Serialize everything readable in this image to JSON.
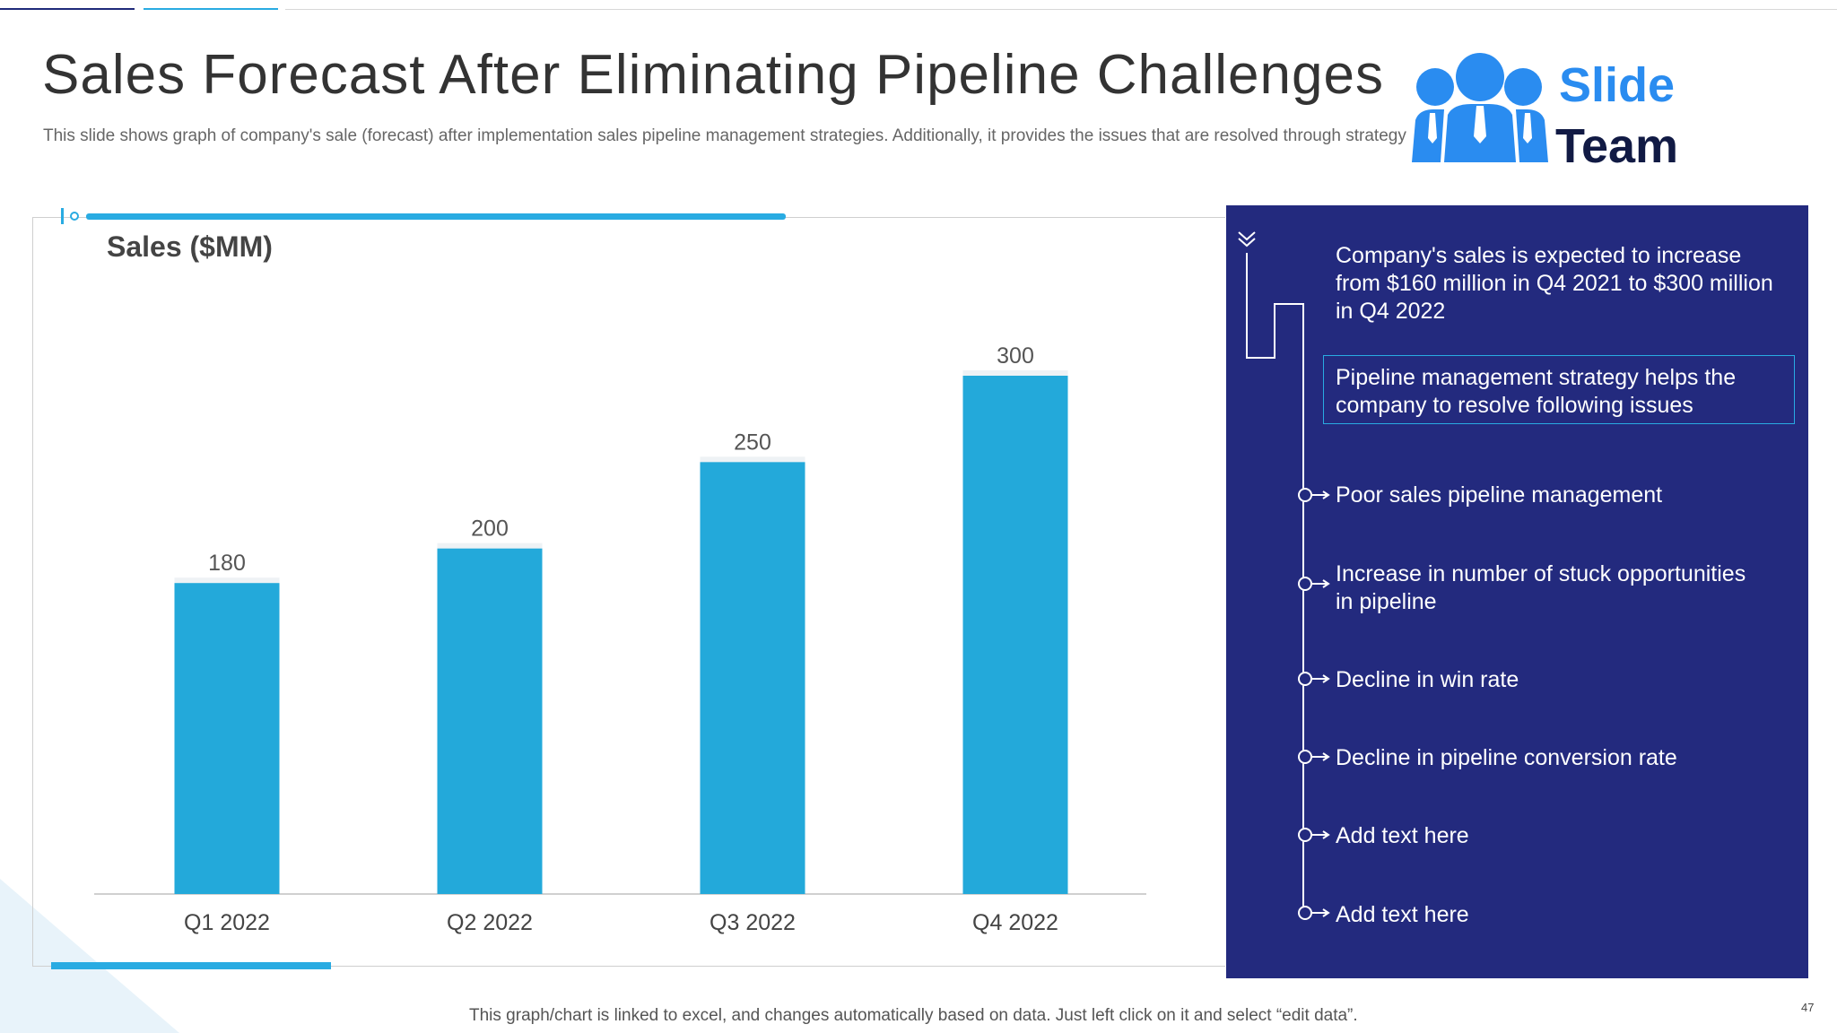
{
  "slide": {
    "title": "Sales Forecast After Eliminating Pipeline Challenges",
    "subtitle": "This slide shows graph of company's sale (forecast) after implementation sales pipeline management strategies. Additionally, it provides the issues that are resolved through strategy implementation.",
    "footnote": "This graph/chart is linked to excel, and changes automatically based on data. Just left click on it and select “edit data”.",
    "page_number": "47"
  },
  "logo": {
    "line1": "Slide",
    "line2": "Team"
  },
  "colors": {
    "bar": "#23a9da",
    "panel": "#232a7e",
    "accent": "#29abe2"
  },
  "chart_data": {
    "type": "bar",
    "title": "",
    "ylabel": "Sales ($MM)",
    "xlabel": "",
    "categories": [
      "Q1 2022",
      "Q2 2022",
      "Q3 2022",
      "Q4 2022"
    ],
    "values": [
      180,
      200,
      250,
      300
    ],
    "data_labels": [
      "180",
      "200",
      "250",
      "300"
    ],
    "ylim": [
      0,
      300
    ],
    "grid": false,
    "legend": "none"
  },
  "side_panel": {
    "intro": "Company's sales is expected to increase from $160 million in Q4 2021 to $300 million in Q4 2022",
    "highlight": "Pipeline management strategy helps the company to resolve following issues",
    "issues": [
      "Poor sales pipeline management",
      "Increase in number of stuck opportunities in pipeline",
      "Decline in win rate",
      "Decline in pipeline conversion rate",
      "Add text here",
      "Add text here"
    ],
    "icon": "chevron-double-down-icon"
  }
}
